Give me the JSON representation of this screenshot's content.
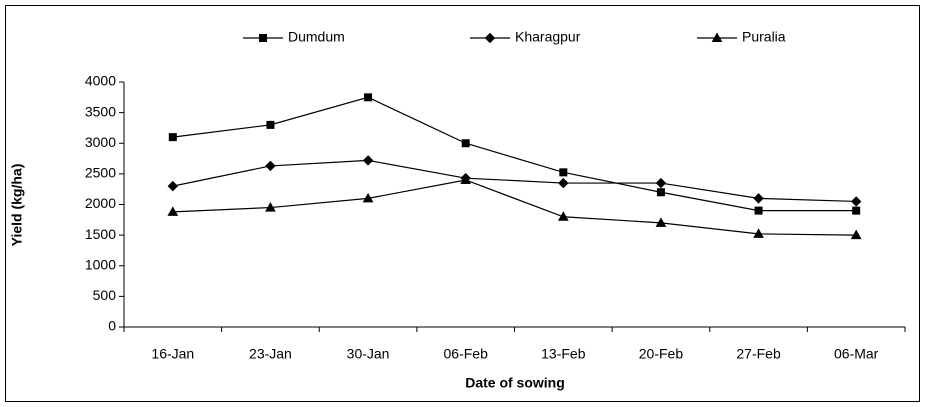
{
  "chart_data": {
    "type": "line",
    "xlabel": "Date of sowing",
    "ylabel": "Yield (kg/ha)",
    "categories": [
      "16-Jan",
      "23-Jan",
      "30-Jan",
      "06-Feb",
      "13-Feb",
      "20-Feb",
      "27-Feb",
      "06-Mar"
    ],
    "series": [
      {
        "name": "Dumdum",
        "color": "#000000",
        "marker": "square",
        "values": [
          3100,
          3300,
          3750,
          3000,
          2525,
          2200,
          1900,
          1900
        ]
      },
      {
        "name": "Kharagpur",
        "color": "#000000",
        "marker": "diamond",
        "values": [
          2300,
          2630,
          2720,
          2430,
          2350,
          2350,
          2100,
          2050
        ]
      },
      {
        "name": "Puralia",
        "color": "#000000",
        "marker": "triangle",
        "values": [
          1880,
          1950,
          2100,
          2400,
          1800,
          1700,
          1520,
          1500
        ]
      }
    ],
    "ylim": [
      0,
      4000
    ],
    "yticks": [
      0,
      500,
      1000,
      1500,
      2000,
      2500,
      3000,
      3500,
      4000
    ],
    "grid": false,
    "legend": "top"
  }
}
